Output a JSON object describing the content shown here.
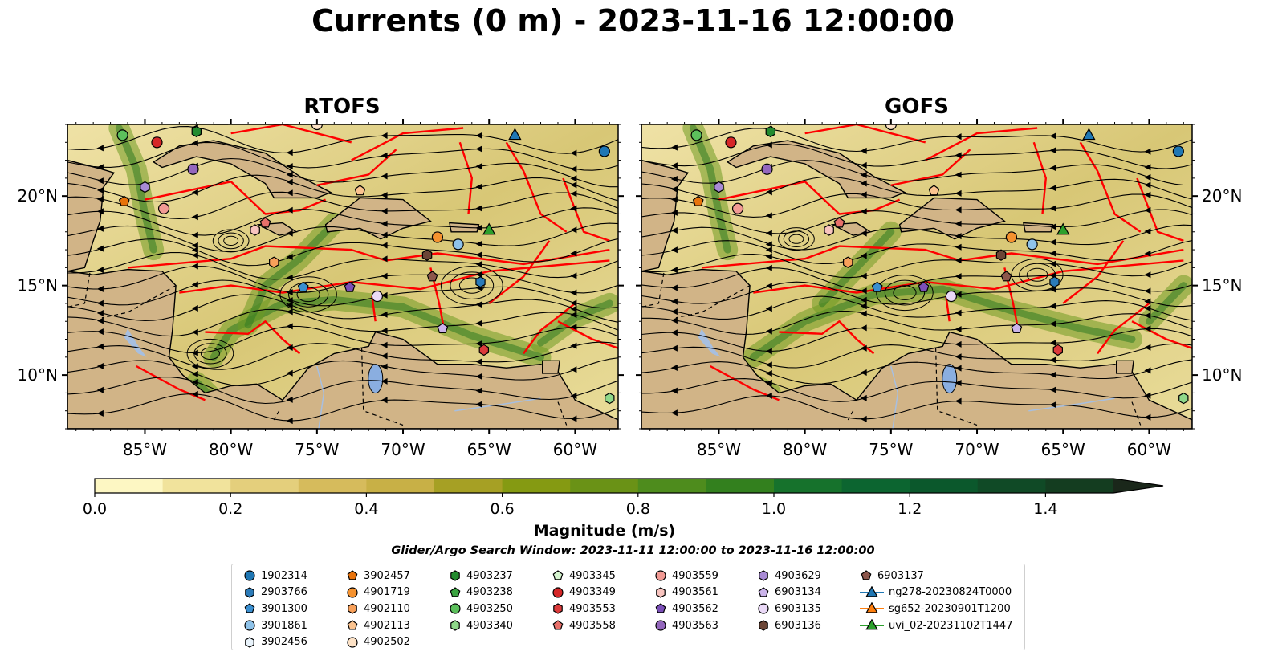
{
  "title": "Currents (0 m) - 2023-11-16 12:00:00",
  "panels": [
    {
      "title": "RTOFS"
    },
    {
      "title": "GOFS"
    }
  ],
  "colorbar": {
    "label": "Magnitude (m/s)",
    "ticks": [
      "0.0",
      "0.2",
      "0.4",
      "0.6",
      "0.8",
      "1.0",
      "1.2",
      "1.4"
    ],
    "colors": [
      "#fdf7c3",
      "#f1e39c",
      "#e4cf7c",
      "#d6bb5c",
      "#c8b046",
      "#a6a024",
      "#859a12",
      "#6a9216",
      "#4e8c1d",
      "#33801e",
      "#16722c",
      "#0c6530",
      "#0b582c",
      "#104a26",
      "#143d20",
      "#17311c",
      "#1a271a"
    ],
    "range": [
      0,
      1.5
    ]
  },
  "search_window": "Glider/Argo Search Window: 2023-11-11 12:00:00 to 2023-11-16 12:00:00",
  "chart_data": [
    {
      "type": "heatmap",
      "title": "RTOFS",
      "xlabel": "",
      "ylabel": "",
      "xlim": [
        -89.5,
        -57.5
      ],
      "ylim": [
        7,
        24
      ],
      "xticks": [
        "85°W",
        "80°W",
        "75°W",
        "70°W",
        "65°W",
        "60°W"
      ],
      "yticks": [
        "10°N",
        "15°N",
        "20°N"
      ],
      "variable": "current magnitude with streamlines",
      "colorbar_range": [
        0,
        1.5
      ]
    },
    {
      "type": "heatmap",
      "title": "GOFS",
      "xlabel": "",
      "ylabel": "",
      "xlim": [
        -89.5,
        -57.5
      ],
      "ylim": [
        7,
        24
      ],
      "xticks": [
        "85°W",
        "80°W",
        "75°W",
        "70°W",
        "65°W",
        "60°W"
      ],
      "yticks": [
        "10°N",
        "15°N",
        "20°N"
      ],
      "variable": "current magnitude with streamlines",
      "colorbar_range": [
        0,
        1.5
      ]
    }
  ],
  "legend": {
    "columns": [
      [
        {
          "label": "1902314",
          "marker": "circle",
          "color": "#1f77b4"
        },
        {
          "label": "2903766",
          "marker": "hexagon",
          "color": "#2b7bb9"
        },
        {
          "label": "3901300",
          "marker": "pentagon",
          "color": "#3a8fd0"
        },
        {
          "label": "3901861",
          "marker": "circle",
          "color": "#8fc3ea"
        },
        {
          "label": "3902456",
          "marker": "hexagon",
          "color": "#e9f3fb"
        }
      ],
      [
        {
          "label": "3902457",
          "marker": "pentagon",
          "color": "#e8730c"
        },
        {
          "label": "4901719",
          "marker": "circle",
          "color": "#f5922f"
        },
        {
          "label": "4902110",
          "marker": "hexagon",
          "color": "#f8a05a"
        },
        {
          "label": "4902113",
          "marker": "pentagon",
          "color": "#fbc38f"
        },
        {
          "label": "4902502",
          "marker": "circle",
          "color": "#fde2c6"
        }
      ],
      [
        {
          "label": "4903237",
          "marker": "hexagon",
          "color": "#238b2f"
        },
        {
          "label": "4903238",
          "marker": "pentagon",
          "color": "#3aa340"
        },
        {
          "label": "4903250",
          "marker": "circle",
          "color": "#5cc05c"
        },
        {
          "label": "4903340",
          "marker": "hexagon",
          "color": "#8fd88a"
        }
      ],
      [
        {
          "label": "4903345",
          "marker": "pentagon",
          "color": "#d6f5d0"
        },
        {
          "label": "4903349",
          "marker": "circle",
          "color": "#d62728"
        },
        {
          "label": "4903553",
          "marker": "hexagon",
          "color": "#dc3b3b"
        },
        {
          "label": "4903558",
          "marker": "pentagon",
          "color": "#e8706a"
        }
      ],
      [
        {
          "label": "4903559",
          "marker": "circle",
          "color": "#f29a94"
        },
        {
          "label": "4903561",
          "marker": "hexagon",
          "color": "#f8c4bf"
        },
        {
          "label": "4903562",
          "marker": "pentagon",
          "color": "#7b4fb8"
        },
        {
          "label": "4903563",
          "marker": "circle",
          "color": "#9467bd"
        }
      ],
      [
        {
          "label": "4903629",
          "marker": "hexagon",
          "color": "#a88ad4"
        },
        {
          "label": "6903134",
          "marker": "pentagon",
          "color": "#cbb4ea"
        },
        {
          "label": "6903135",
          "marker": "circle",
          "color": "#ead9f7"
        },
        {
          "label": "6903136",
          "marker": "hexagon",
          "color": "#6b4536"
        }
      ],
      [
        {
          "label": "6903137",
          "marker": "pentagon",
          "color": "#8c564b"
        },
        {
          "label": "ng278-20230824T0000",
          "marker": "triangle-line",
          "color": "#1f77b4"
        },
        {
          "label": "sg652-20230901T1200",
          "marker": "triangle-line",
          "color": "#ff7f0e"
        },
        {
          "label": "uvi_02-20231102T1447",
          "marker": "triangle-line",
          "color": "#2ca02c"
        }
      ]
    ]
  }
}
